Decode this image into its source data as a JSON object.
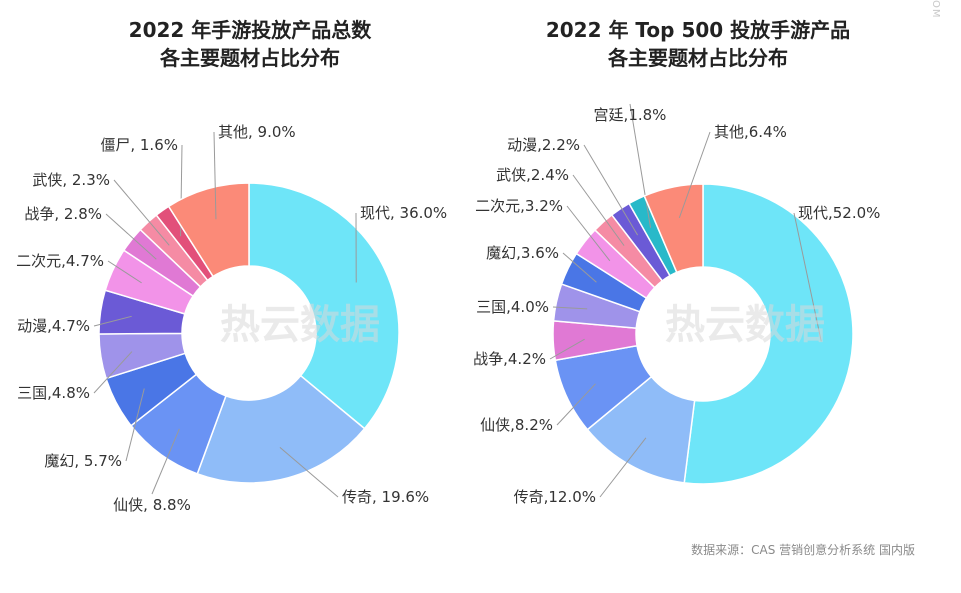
{
  "chart_data": [
    {
      "type": "pie",
      "title_line1": "2022 年手游投放产品总数",
      "title_line2": "各主要题材占比分布",
      "slices": [
        {
          "label": "现代, 36.0%",
          "value": 36.0,
          "color": "#6ee5f8"
        },
        {
          "label": "传奇, 19.6%",
          "value": 19.6,
          "color": "#8fbcf8"
        },
        {
          "label": "仙侠, 8.8%",
          "value": 8.8,
          "color": "#6a93f4"
        },
        {
          "label": "魔幻, 5.7%",
          "value": 5.7,
          "color": "#4a76e6"
        },
        {
          "label": "三国,4.8%",
          "value": 4.8,
          "color": "#9f93ea"
        },
        {
          "label": "动漫,4.7%",
          "value": 4.7,
          "color": "#6b5ad6"
        },
        {
          "label": "二次元,4.7%",
          "value": 4.7,
          "color": "#f293e8"
        },
        {
          "label": "战争, 2.8%",
          "value": 2.8,
          "color": "#e079d4"
        },
        {
          "label": "武侠, 2.3%",
          "value": 2.3,
          "color": "#f58ba4"
        },
        {
          "label": "僵尸, 1.6%",
          "value": 1.6,
          "color": "#e2507a"
        },
        {
          "label": "其他, 9.0%",
          "value": 9.0,
          "color": "#fb8a78"
        }
      ]
    },
    {
      "type": "pie",
      "title_line1": "2022 年 Top 500 投放手游产品",
      "title_line2": "各主要题材占比分布",
      "slices": [
        {
          "label": "现代,52.0%",
          "value": 52.0,
          "color": "#6ee5f8"
        },
        {
          "label": "传奇,12.0%",
          "value": 12.0,
          "color": "#8fbcf8"
        },
        {
          "label": "仙侠,8.2%",
          "value": 8.2,
          "color": "#6a93f4"
        },
        {
          "label": "战争,4.2%",
          "value": 4.2,
          "color": "#e079d4"
        },
        {
          "label": "三国,4.0%",
          "value": 4.0,
          "color": "#9f93ea"
        },
        {
          "label": "魔幻,3.6%",
          "value": 3.6,
          "color": "#4a76e6"
        },
        {
          "label": "二次元,3.2%",
          "value": 3.2,
          "color": "#f293e8"
        },
        {
          "label": "武侠,2.4%",
          "value": 2.4,
          "color": "#f58ba4"
        },
        {
          "label": "动漫,2.2%",
          "value": 2.2,
          "color": "#6b5ad6"
        },
        {
          "label": "宫廷,1.8%",
          "value": 1.8,
          "color": "#28b9c9"
        },
        {
          "label": "其他,6.4%",
          "value": 6.4,
          "color": "#fb8a78"
        }
      ]
    }
  ],
  "watermark": "热云数据",
  "source": "数据来源：CAS 营销创意分析系统 国内版",
  "corner_mark": "OM"
}
